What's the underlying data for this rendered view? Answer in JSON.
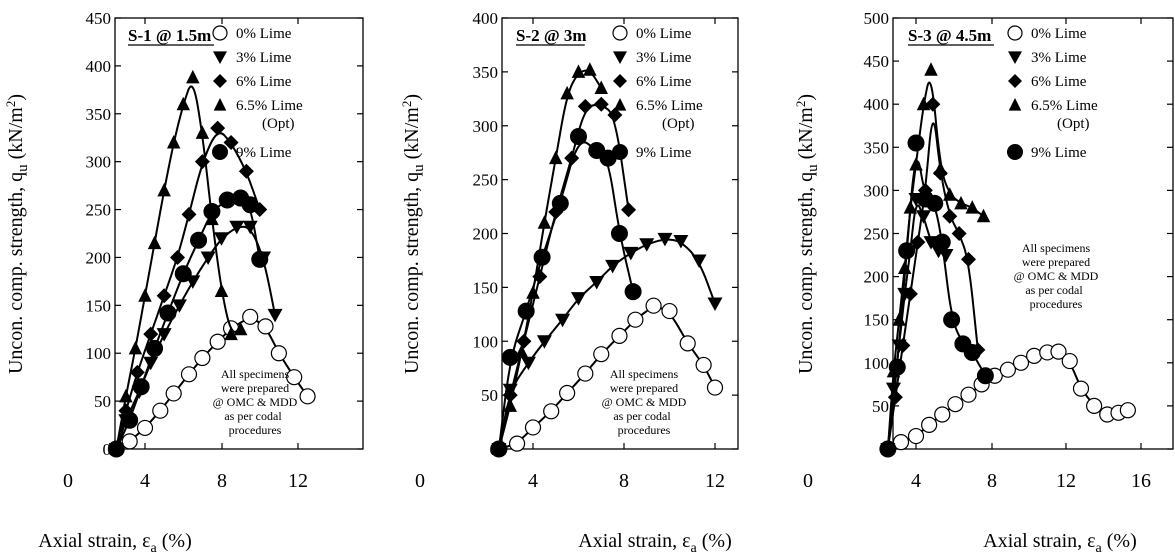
{
  "chart_data": [
    {
      "type": "line",
      "title": "S-1 @ 1.5m",
      "xlabel": "Axial strain, εa (%)",
      "ylabel": "Uncon. comp. strength, qu (kN/m²)",
      "xlim": [
        0,
        14
      ],
      "ylim": [
        0,
        450
      ],
      "xticks": [
        "0",
        "4",
        "8",
        "12"
      ],
      "yticks": [
        "0",
        "50",
        "100",
        "150",
        "200",
        "250",
        "300",
        "350",
        "400",
        "450"
      ],
      "legend_position": "top-right",
      "note": [
        "All specimens",
        "were prepared",
        "@ OMC & MDD",
        "as per codal",
        "procedures"
      ],
      "series": [
        {
          "name": "0% Lime",
          "marker": "open-circle",
          "x": [
            2.5,
            3.2,
            4.0,
            4.8,
            5.5,
            6.3,
            7.0,
            7.8,
            8.5,
            9.5,
            10.3,
            11.0,
            11.8,
            12.5
          ],
          "y": [
            0,
            8,
            22,
            40,
            58,
            78,
            95,
            112,
            126,
            138,
            128,
            100,
            75,
            55
          ]
        },
        {
          "name": "3% Lime",
          "marker": "down-triangle",
          "x": [
            2.5,
            3.0,
            3.7,
            4.3,
            5.0,
            5.8,
            6.5,
            7.3,
            8.0,
            8.8,
            9.5,
            10.2,
            10.8
          ],
          "y": [
            0,
            30,
            60,
            90,
            120,
            150,
            175,
            200,
            220,
            232,
            232,
            200,
            140
          ]
        },
        {
          "name": "6% Lime",
          "marker": "diamond",
          "x": [
            2.5,
            3.0,
            3.6,
            4.3,
            5.0,
            5.7,
            6.3,
            7.0,
            7.8,
            8.5,
            9.3,
            10.0
          ],
          "y": [
            0,
            40,
            80,
            120,
            160,
            200,
            245,
            300,
            335,
            320,
            290,
            250
          ]
        },
        {
          "name": "6.5% Lime (Opt)",
          "marker": "up-triangle",
          "x": [
            2.5,
            3.0,
            3.5,
            4.0,
            4.5,
            5.0,
            5.5,
            6.0,
            6.5,
            7.0,
            7.5,
            8.0,
            8.5,
            9.0
          ],
          "y": [
            0,
            55,
            105,
            160,
            215,
            270,
            320,
            360,
            388,
            330,
            240,
            165,
            120,
            125
          ]
        },
        {
          "name": "9% Lime",
          "marker": "filled-circle",
          "x": [
            2.5,
            3.2,
            3.8,
            4.5,
            5.2,
            6.0,
            6.8,
            7.5,
            8.3,
            9.0,
            9.5,
            10.0
          ],
          "y": [
            0,
            30,
            65,
            105,
            142,
            183,
            218,
            248,
            260,
            262,
            255,
            198
          ]
        }
      ]
    },
    {
      "type": "line",
      "title": "S-2 @ 3m",
      "xlabel": "Axial strain, εa (%)",
      "ylabel": "Uncon. comp. strength, qu (kN/m²)",
      "xlim": [
        0,
        14
      ],
      "ylim": [
        0,
        400
      ],
      "xticks": [
        "0",
        "4",
        "8",
        "12"
      ],
      "yticks": [
        "0",
        "50",
        "100",
        "150",
        "200",
        "250",
        "300",
        "350",
        "400"
      ],
      "legend_position": "top-right",
      "note": [
        "All specimens",
        "were prepared",
        "@ OMC & MDD",
        "as per codal",
        "procedures"
      ],
      "series": [
        {
          "name": "0% Lime",
          "marker": "open-circle",
          "x": [
            2.5,
            3.3,
            4.0,
            4.8,
            5.5,
            6.3,
            7.0,
            7.8,
            8.5,
            9.3,
            10.0,
            10.8,
            11.5,
            12.0
          ],
          "y": [
            0,
            5,
            20,
            35,
            52,
            70,
            88,
            105,
            120,
            133,
            128,
            98,
            78,
            57
          ]
        },
        {
          "name": "3% Lime",
          "marker": "down-triangle",
          "x": [
            2.5,
            3.0,
            3.8,
            4.5,
            5.3,
            6.0,
            6.8,
            7.5,
            8.3,
            9.0,
            9.8,
            10.5,
            11.3,
            12.0
          ],
          "y": [
            0,
            55,
            80,
            100,
            120,
            140,
            155,
            170,
            182,
            190,
            195,
            193,
            175,
            135
          ]
        },
        {
          "name": "6% Lime",
          "marker": "diamond",
          "x": [
            2.5,
            3.0,
            3.6,
            4.3,
            5.0,
            5.7,
            6.3,
            7.0,
            7.6,
            8.2
          ],
          "y": [
            0,
            50,
            100,
            160,
            220,
            270,
            318,
            320,
            310,
            222
          ]
        },
        {
          "name": "6.5% Lime (Opt)",
          "marker": "up-triangle",
          "x": [
            2.5,
            3.0,
            3.5,
            4.0,
            4.5,
            5.0,
            5.5,
            6.0,
            6.5,
            7.0
          ],
          "y": [
            0,
            40,
            90,
            145,
            210,
            270,
            330,
            350,
            352,
            335
          ]
        },
        {
          "name": "9% Lime",
          "marker": "filled-circle",
          "x": [
            2.5,
            3.0,
            3.7,
            4.4,
            5.2,
            6.0,
            6.8,
            7.3,
            7.8,
            8.4
          ],
          "y": [
            0,
            85,
            128,
            178,
            228,
            290,
            277,
            270,
            200,
            146
          ]
        }
      ]
    },
    {
      "type": "line",
      "title": "S-3 @ 4.5m",
      "xlabel": "Axial strain, εa (%)",
      "ylabel": "Uncon. comp. strength, qu (kN/m²)",
      "xlim": [
        0,
        18
      ],
      "ylim": [
        0,
        500
      ],
      "xticks": [
        "0",
        "4",
        "8",
        "12",
        "16"
      ],
      "yticks": [
        "0",
        "50",
        "100",
        "150",
        "200",
        "250",
        "300",
        "350",
        "400",
        "450",
        "500"
      ],
      "legend_position": "top-right",
      "note": [
        "All specimens",
        "were prepared",
        "@ OMC & MDD",
        "as per codal",
        "procedures"
      ],
      "series": [
        {
          "name": "0% Lime",
          "marker": "open-circle",
          "x": [
            2.5,
            3.2,
            4.0,
            4.7,
            5.4,
            6.1,
            6.8,
            7.5,
            8.2,
            8.9,
            9.6,
            10.3,
            11.0,
            11.6,
            12.2,
            12.8,
            13.5,
            14.2,
            14.8,
            15.3
          ],
          "y": [
            0,
            8,
            15,
            28,
            40,
            52,
            63,
            75,
            85,
            92,
            100,
            108,
            112,
            113,
            102,
            70,
            50,
            40,
            42,
            45
          ]
        },
        {
          "name": "3% Lime",
          "marker": "down-triangle",
          "x": [
            2.5,
            2.8,
            3.1,
            3.4,
            3.7,
            4.0,
            4.4,
            4.8,
            5.2,
            5.6
          ],
          "y": [
            0,
            70,
            120,
            180,
            230,
            290,
            270,
            240,
            230,
            225
          ]
        },
        {
          "name": "6% Lime",
          "marker": "diamond",
          "x": [
            2.5,
            2.9,
            3.3,
            3.7,
            4.1,
            4.5,
            4.9,
            5.3,
            5.8,
            6.3,
            6.8,
            7.3
          ],
          "y": [
            0,
            60,
            120,
            180,
            240,
            300,
            400,
            320,
            270,
            250,
            220,
            115
          ]
        },
        {
          "name": "6.5% Lime (Opt)",
          "marker": "up-triangle",
          "x": [
            2.5,
            2.8,
            3.1,
            3.4,
            3.7,
            4.0,
            4.4,
            4.8,
            5.3,
            5.8,
            6.4,
            7.0,
            7.6
          ],
          "y": [
            0,
            90,
            150,
            210,
            280,
            330,
            400,
            440,
            325,
            295,
            285,
            280,
            270
          ]
        },
        {
          "name": "9% Lime",
          "marker": "filled-circle",
          "x": [
            2.5,
            3.0,
            3.5,
            4.0,
            4.5,
            5.0,
            5.4,
            5.9,
            6.5,
            7.0,
            7.7
          ],
          "y": [
            0,
            95,
            230,
            355,
            290,
            285,
            240,
            150,
            122,
            112,
            85
          ]
        }
      ]
    }
  ]
}
